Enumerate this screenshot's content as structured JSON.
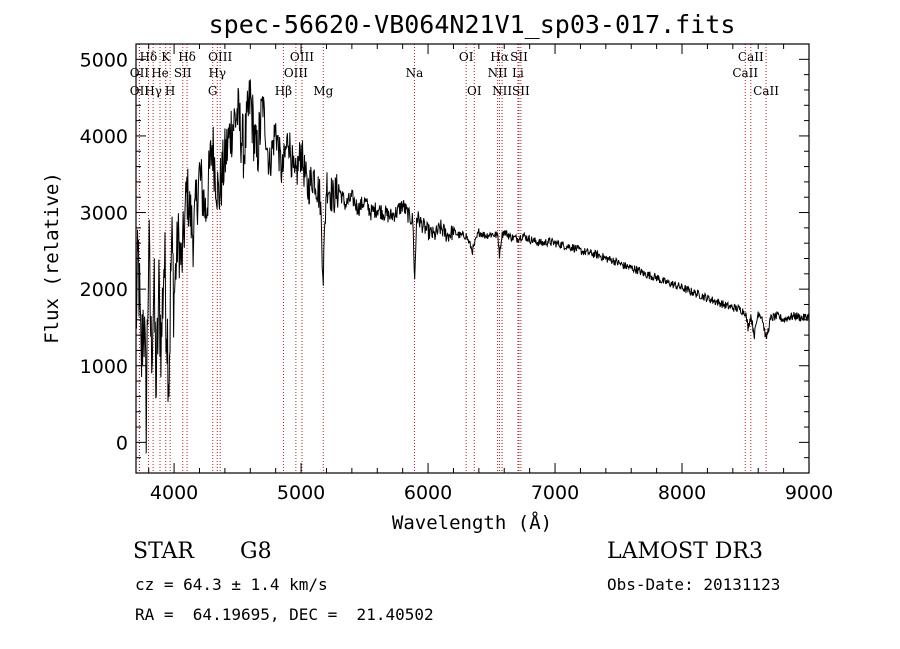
{
  "chart_data": {
    "type": "line",
    "title": "spec-56620-VB064N21V1_sp03-017.fits",
    "xlabel": "Wavelength (Å)",
    "ylabel": "Flux (relative)",
    "xlim": [
      3700,
      9000
    ],
    "ylim": [
      -400,
      5200
    ],
    "xticks": [
      4000,
      5000,
      6000,
      7000,
      8000,
      9000
    ],
    "yticks": [
      0,
      1000,
      2000,
      3000,
      4000,
      5000
    ],
    "series": [
      {
        "name": "spectrum",
        "x": [
          3700,
          3720,
          3740,
          3760,
          3780,
          3800,
          3820,
          3840,
          3860,
          3880,
          3900,
          3920,
          3940,
          3960,
          3980,
          4000,
          4030,
          4060,
          4100,
          4150,
          4200,
          4250,
          4300,
          4350,
          4400,
          4450,
          4500,
          4550,
          4600,
          4650,
          4700,
          4750,
          4800,
          4850,
          4900,
          4950,
          5000,
          5050,
          5100,
          5150,
          5175,
          5200,
          5250,
          5300,
          5350,
          5400,
          5450,
          5500,
          5550,
          5600,
          5650,
          5700,
          5750,
          5800,
          5850,
          5880,
          5895,
          5910,
          5950,
          6000,
          6050,
          6100,
          6150,
          6200,
          6250,
          6300,
          6350,
          6400,
          6450,
          6500,
          6550,
          6563,
          6580,
          6600,
          6650,
          6700,
          6750,
          6800,
          6850,
          6900,
          6950,
          7000,
          7050,
          7100,
          7150,
          7200,
          7250,
          7300,
          7350,
          7400,
          7450,
          7500,
          7550,
          7600,
          7650,
          7700,
          7750,
          7800,
          7850,
          7900,
          7950,
          8000,
          8050,
          8100,
          8150,
          8200,
          8250,
          8300,
          8350,
          8400,
          8450,
          8498,
          8520,
          8542,
          8570,
          8600,
          8630,
          8662,
          8700,
          8750,
          8800,
          8850,
          8900,
          8950,
          9000
        ],
        "values": [
          1600,
          2400,
          900,
          1800,
          400,
          2600,
          1200,
          2000,
          700,
          1900,
          1300,
          2400,
          1700,
          900,
          2600,
          1900,
          2700,
          2300,
          3300,
          2700,
          3500,
          3000,
          3900,
          3200,
          3700,
          4100,
          4300,
          3800,
          4500,
          3700,
          4400,
          3600,
          4100,
          3500,
          4000,
          3400,
          3800,
          3300,
          3500,
          3200,
          2200,
          3400,
          3200,
          3300,
          3100,
          3200,
          3050,
          3150,
          3000,
          3050,
          3000,
          2950,
          3000,
          3100,
          2950,
          2900,
          2100,
          2950,
          2850,
          2750,
          2700,
          2800,
          2700,
          2750,
          2700,
          2700,
          2500,
          2750,
          2700,
          2720,
          2700,
          2450,
          2700,
          2750,
          2680,
          2660,
          2700,
          2650,
          2620,
          2600,
          2620,
          2600,
          2580,
          2560,
          2540,
          2500,
          2480,
          2460,
          2440,
          2400,
          2380,
          2340,
          2300,
          2280,
          2250,
          2200,
          2180,
          2150,
          2100,
          2080,
          2050,
          2020,
          1980,
          1950,
          1920,
          1880,
          1850,
          1820,
          1780,
          1760,
          1740,
          1700,
          1500,
          1650,
          1400,
          1700,
          1640,
          1350,
          1620,
          1650,
          1600,
          1640,
          1650,
          1620,
          1650
        ]
      }
    ],
    "lines": [
      {
        "name": "Hδ",
        "x": 3798,
        "row": 1
      },
      {
        "name": "OII",
        "x": 3727,
        "row": 2
      },
      {
        "name": "OII",
        "x": 3727,
        "row": 3
      },
      {
        "name": "He",
        "x": 3889,
        "row": 2
      },
      {
        "name": "Hγ",
        "x": 3835,
        "row": 3
      },
      {
        "name": "K",
        "x": 3934,
        "row": 1
      },
      {
        "name": "H",
        "x": 3969,
        "row": 3
      },
      {
        "name": "SII",
        "x": 4068,
        "row": 2
      },
      {
        "name": "Hδ",
        "x": 4102,
        "row": 1
      },
      {
        "name": "OIII",
        "x": 4363,
        "row": 1
      },
      {
        "name": "Hγ",
        "x": 4340,
        "row": 2
      },
      {
        "name": "G",
        "x": 4304,
        "row": 3
      },
      {
        "name": "Hβ",
        "x": 4861,
        "row": 3
      },
      {
        "name": "OIII",
        "x": 5007,
        "row": 1
      },
      {
        "name": "OIII",
        "x": 4959,
        "row": 2
      },
      {
        "name": "Mg",
        "x": 5175,
        "row": 3
      },
      {
        "name": "Na",
        "x": 5893,
        "row": 2
      },
      {
        "name": "OI",
        "x": 6300,
        "row": 1
      },
      {
        "name": "OI",
        "x": 6364,
        "row": 3
      },
      {
        "name": "Hα",
        "x": 6563,
        "row": 1
      },
      {
        "name": "NII",
        "x": 6548,
        "row": 2
      },
      {
        "name": "NII",
        "x": 6583,
        "row": 3
      },
      {
        "name": "SII",
        "x": 6716,
        "row": 1
      },
      {
        "name": "Li",
        "x": 6708,
        "row": 2
      },
      {
        "name": "SII",
        "x": 6731,
        "row": 3
      },
      {
        "name": "CaII",
        "x": 8542,
        "row": 1
      },
      {
        "name": "CaII",
        "x": 8498,
        "row": 2
      },
      {
        "name": "CaII",
        "x": 8662,
        "row": 3
      }
    ]
  },
  "info": {
    "class": "STAR",
    "subclass": "G8",
    "survey": "LAMOST DR3",
    "velocity": "cz = 64.3 ± 1.4 km/s",
    "obs_date": "Obs-Date: 20131123",
    "coords": "RA =  64.19695, DEC =  21.40502"
  },
  "colors": {
    "line_marker": "#b22222",
    "spectrum": "#000000",
    "axes": "#000000"
  }
}
